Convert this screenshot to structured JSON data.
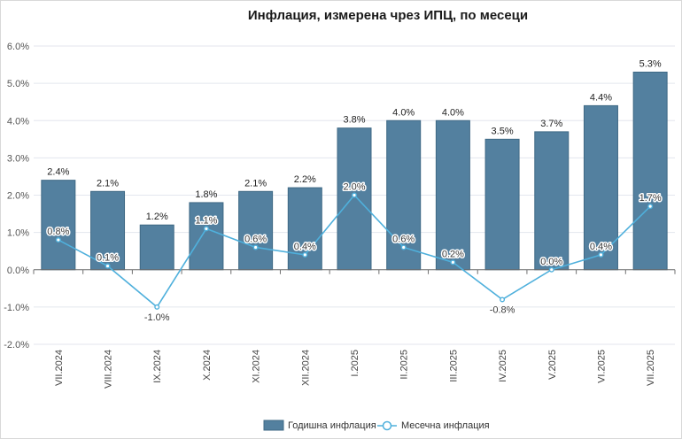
{
  "chart_data": {
    "type": "bar",
    "title": "Инфлация, измерена чрез ИПЦ, по месеци",
    "categories": [
      "VII.2024",
      "VIII.2024",
      "IX.2024",
      "X.2024",
      "XI.2024",
      "XII.2024",
      "I.2025",
      "II.2025",
      "III.2025",
      "IV.2025",
      "V.2025",
      "VI.2025",
      "VII.2025"
    ],
    "series": [
      {
        "name": "Годишна инфлация",
        "type": "bar",
        "color": "#53809f",
        "values": [
          2.4,
          2.1,
          1.2,
          1.8,
          2.1,
          2.2,
          3.8,
          4.0,
          4.0,
          3.5,
          3.7,
          4.4,
          5.3
        ],
        "labels": [
          "2.4%",
          "2.1%",
          "1.2%",
          "1.8%",
          "2.1%",
          "2.2%",
          "3.8%",
          "4.0%",
          "4.0%",
          "3.5%",
          "3.7%",
          "4.4%",
          "5.3%"
        ]
      },
      {
        "name": "Месечна инфлация",
        "type": "line",
        "color": "#4fb0dc",
        "values": [
          0.8,
          0.1,
          -1.0,
          1.1,
          0.6,
          0.4,
          2.0,
          0.6,
          0.2,
          -0.8,
          0.0,
          0.4,
          1.7
        ],
        "labels": [
          "0.8%",
          "0.1%",
          "-1.0%",
          "1.1%",
          "0.6%",
          "0.4%",
          "2.0%",
          "0.6%",
          "0.2%",
          "-0.8%",
          "0.0%",
          "0.4%",
          "1.7%"
        ]
      }
    ],
    "ylim": [
      -2.0,
      6.0
    ],
    "yticks": [
      -2.0,
      -1.0,
      0.0,
      1.0,
      2.0,
      3.0,
      4.0,
      5.0,
      6.0
    ],
    "ytick_labels": [
      "-2.0%",
      "-1.0%",
      "0.0%",
      "1.0%",
      "2.0%",
      "3.0%",
      "4.0%",
      "5.0%",
      "6.0%"
    ],
    "grid": true,
    "legend_position": "bottom-center"
  }
}
